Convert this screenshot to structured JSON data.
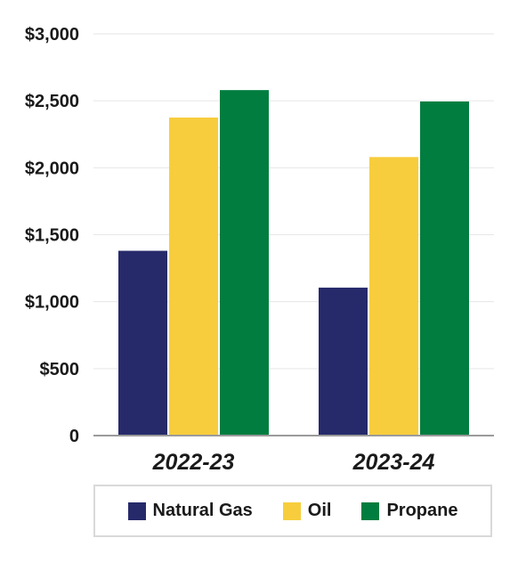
{
  "chart_data": {
    "type": "bar",
    "title": "",
    "xlabel": "",
    "ylabel": "",
    "categories": [
      "2022-23",
      "2023-24"
    ],
    "series": [
      {
        "name": "Natural Gas",
        "color": "#262a6a",
        "values": [
          1380,
          1105
        ]
      },
      {
        "name": "Oil",
        "color": "#f7cd3d",
        "values": [
          2375,
          2080
        ]
      },
      {
        "name": "Propane",
        "color": "#017d40",
        "values": [
          2580,
          2495
        ]
      }
    ],
    "ylim": [
      0,
      3000
    ],
    "yticks": [
      0,
      500,
      1000,
      1500,
      2000,
      2500,
      3000
    ],
    "ytick_labels": [
      "0",
      "$500",
      "$1,000",
      "$1,500",
      "$2,000",
      "$2,500",
      "$3,000"
    ],
    "grid": true,
    "legend_position": "bottom"
  }
}
